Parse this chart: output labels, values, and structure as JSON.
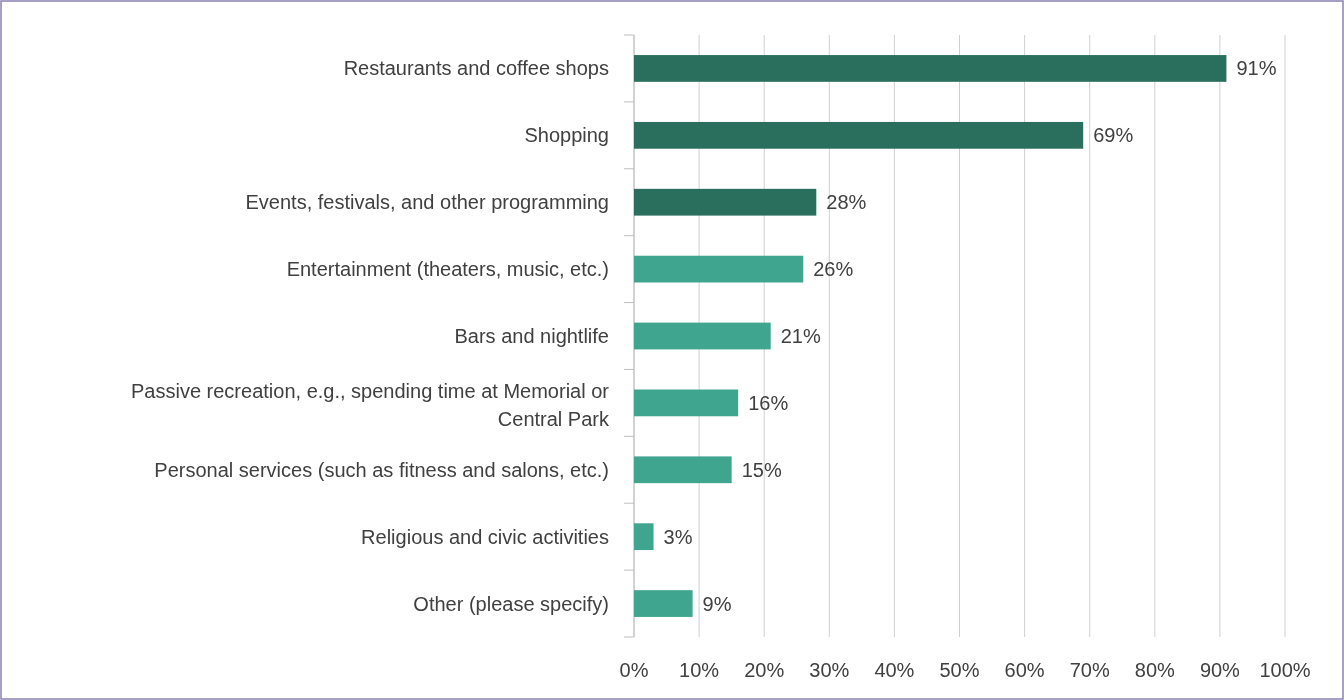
{
  "chart_data": {
    "type": "bar",
    "orientation": "horizontal",
    "categories": [
      "Restaurants and coffee shops",
      "Shopping",
      "Events, festivals, and other programming",
      "Entertainment (theaters, music, etc.)",
      "Bars and nightlife",
      "Passive recreation, e.g., spending time at Memorial or Central Park",
      "Personal services (such as fitness and salons, etc.)",
      "Religious and civic activities",
      "Other (please specify)"
    ],
    "values": [
      91,
      69,
      28,
      26,
      21,
      16,
      15,
      3,
      9
    ],
    "colors": [
      "#2a6e5e",
      "#2a6e5e",
      "#2a6e5e",
      "#3fa58f",
      "#3fa58f",
      "#3fa58f",
      "#3fa58f",
      "#3fa58f",
      "#3fa58f"
    ],
    "value_labels": [
      "91%",
      "69%",
      "28%",
      "26%",
      "21%",
      "16%",
      "15%",
      "3%",
      "9%"
    ],
    "xlim": [
      0,
      100
    ],
    "xticks": [
      {
        "value": 0,
        "label": "0%"
      },
      {
        "value": 10,
        "label": "10%"
      },
      {
        "value": 20,
        "label": "20%"
      },
      {
        "value": 30,
        "label": "30%"
      },
      {
        "value": 40,
        "label": "40%"
      },
      {
        "value": 50,
        "label": "50%"
      },
      {
        "value": 60,
        "label": "60%"
      },
      {
        "value": 70,
        "label": "70%"
      },
      {
        "value": 80,
        "label": "80%"
      },
      {
        "value": 90,
        "label": "90%"
      },
      {
        "value": 100,
        "label": "100%"
      }
    ],
    "grid": "x"
  }
}
